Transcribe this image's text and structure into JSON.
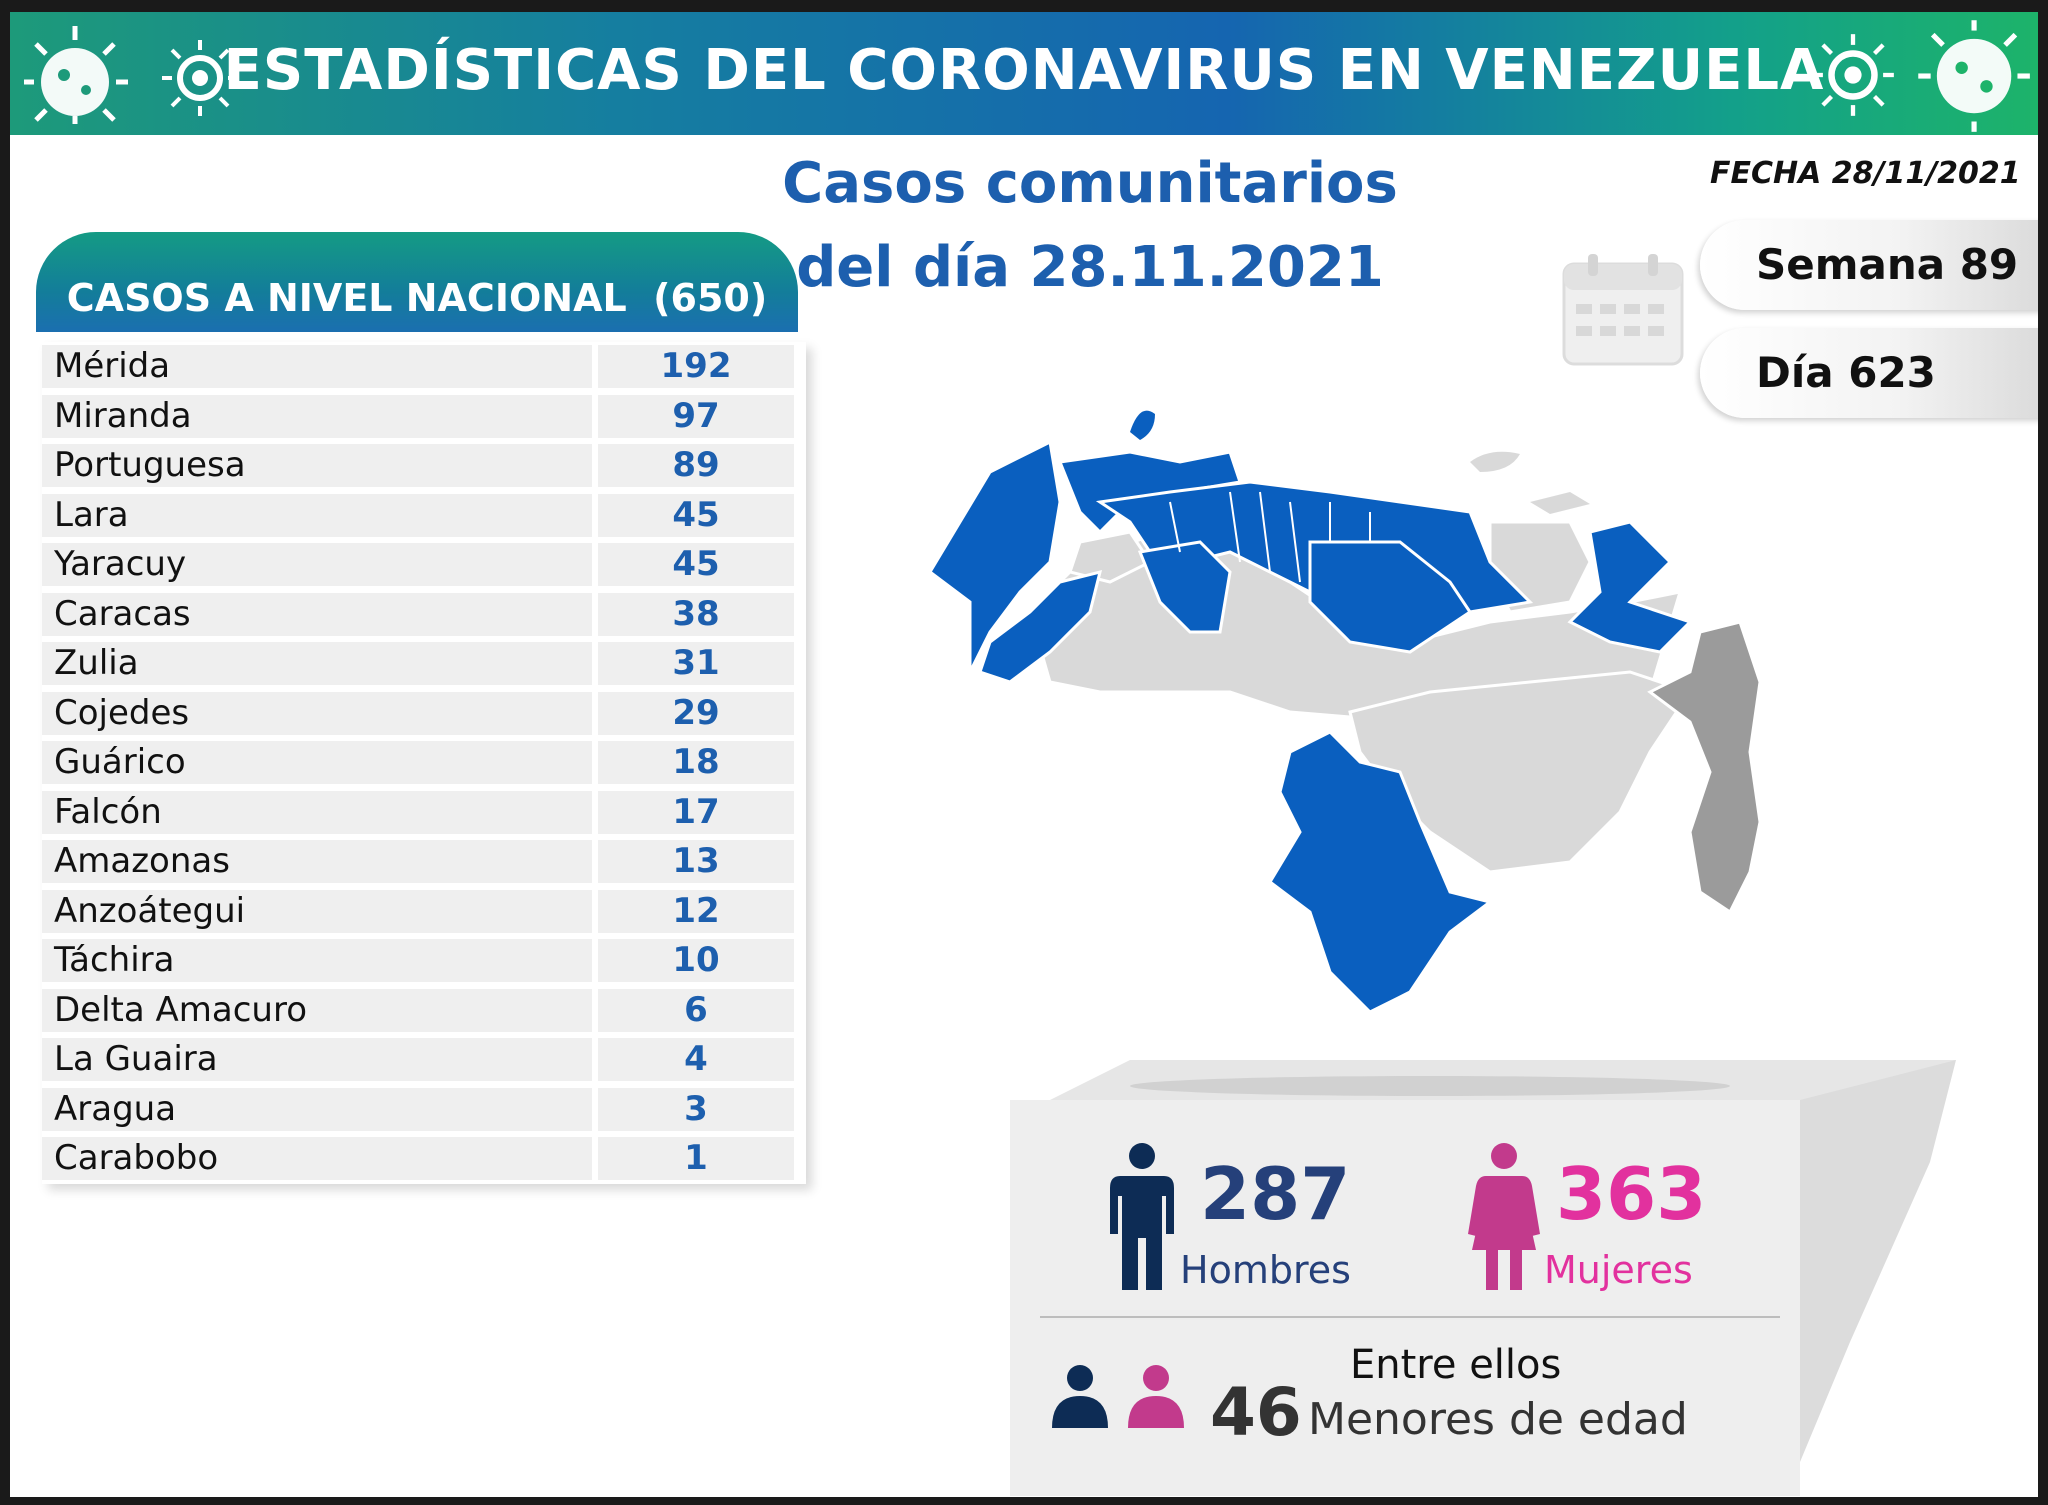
{
  "header": {
    "title": "ESTADÍSTICAS DEL CORONAVIRUS EN VENEZUELA"
  },
  "subtitle": {
    "line1": "Casos comunitarios",
    "line2": "del día 28.11.2021"
  },
  "date_label": "FECHA 28/11/2021",
  "table": {
    "title": "CASOS A NIVEL NACIONAL  (650)",
    "rows": [
      {
        "state": "Mérida",
        "cases": "192"
      },
      {
        "state": "Miranda",
        "cases": "97"
      },
      {
        "state": "Portuguesa",
        "cases": "89"
      },
      {
        "state": "Lara",
        "cases": "45"
      },
      {
        "state": "Yaracuy",
        "cases": "45"
      },
      {
        "state": "Caracas",
        "cases": "38"
      },
      {
        "state": "Zulia",
        "cases": "31"
      },
      {
        "state": "Cojedes",
        "cases": "29"
      },
      {
        "state": "Guárico",
        "cases": "18"
      },
      {
        "state": "Falcón",
        "cases": "17"
      },
      {
        "state": "Amazonas",
        "cases": "13"
      },
      {
        "state": "Anzoátegui",
        "cases": "12"
      },
      {
        "state": "Táchira",
        "cases": "10"
      },
      {
        "state": "Delta Amacuro",
        "cases": "6"
      },
      {
        "state": "La Guaira",
        "cases": "4"
      },
      {
        "state": "Aragua",
        "cases": "3"
      },
      {
        "state": "Carabobo",
        "cases": "1"
      }
    ]
  },
  "week_label": "Semana 89",
  "day_label": "Día 623",
  "stats": {
    "men_count": "287",
    "men_label": "Hombres",
    "women_count": "363",
    "women_label": "Mujeres",
    "minors_intro": "Entre ellos",
    "minors_count": "46",
    "minors_label": "Menores de edad"
  },
  "colors": {
    "highlight_blue": "#0a5fbf",
    "light_gray": "#d9d9d9",
    "dark_gray": "#9b9b9b",
    "men": "#25407a",
    "women": "#e2319e"
  },
  "icons": {
    "virus": "virus-icon",
    "calendar": "calendar-icon",
    "man": "man-icon",
    "woman": "woman-icon",
    "children": "children-icon"
  }
}
